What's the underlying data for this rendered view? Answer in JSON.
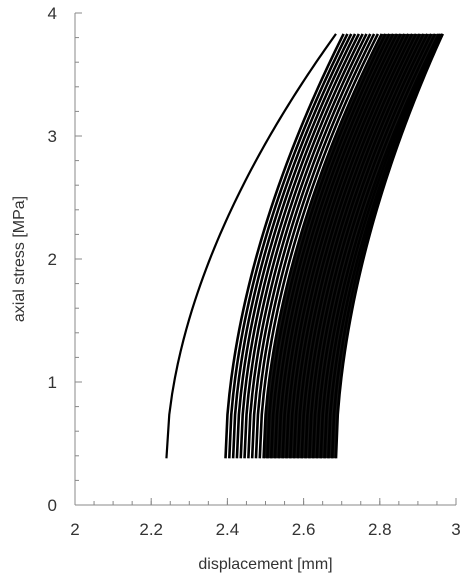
{
  "chart_data": {
    "type": "line",
    "title": "",
    "xlabel": "displacement [mm]",
    "ylabel": "axial stress [MPa]",
    "xlim": [
      2,
      3
    ],
    "ylim": [
      0,
      4
    ],
    "xticks": [
      2,
      2.2,
      2.4,
      2.6,
      2.8,
      3
    ],
    "xtick_labels": [
      "2",
      "2.2",
      "2.4",
      "2.6",
      "2.8",
      "3"
    ],
    "yticks": [
      0,
      1,
      2,
      3,
      4
    ],
    "ytick_labels": [
      "0",
      "1",
      "2",
      "3",
      "4"
    ],
    "x_minor_step": 0.05,
    "y_minor_step": 0.2,
    "grid": false,
    "legend": "none",
    "line_color": "#000000",
    "load_cycles": {
      "stress_min": 0.38,
      "stress_max": 3.83,
      "curve_shape_exponent": 1.8,
      "first_cycle": {
        "x_start": 2.24,
        "x_end": 2.685
      },
      "cycles": [
        {
          "x_start": 2.395,
          "x_end": 2.705
        },
        {
          "x_start": 2.405,
          "x_end": 2.715
        },
        {
          "x_start": 2.415,
          "x_end": 2.725
        },
        {
          "x_start": 2.425,
          "x_end": 2.735
        },
        {
          "x_start": 2.435,
          "x_end": 2.745
        },
        {
          "x_start": 2.445,
          "x_end": 2.755
        },
        {
          "x_start": 2.455,
          "x_end": 2.765
        },
        {
          "x_start": 2.465,
          "x_end": 2.775
        },
        {
          "x_start": 2.475,
          "x_end": 2.785
        },
        {
          "x_start": 2.485,
          "x_end": 2.795
        },
        {
          "x_start": 2.495,
          "x_end": 2.805
        },
        {
          "x_start": 2.505,
          "x_end": 2.815
        },
        {
          "x_start": 2.515,
          "x_end": 2.825
        },
        {
          "x_start": 2.525,
          "x_end": 2.835
        },
        {
          "x_start": 2.535,
          "x_end": 2.845
        },
        {
          "x_start": 2.545,
          "x_end": 2.855
        },
        {
          "x_start": 2.555,
          "x_end": 2.865
        },
        {
          "x_start": 2.565,
          "x_end": 2.875
        },
        {
          "x_start": 2.575,
          "x_end": 2.885
        },
        {
          "x_start": 2.585,
          "x_end": 2.895
        },
        {
          "x_start": 2.595,
          "x_end": 2.905
        },
        {
          "x_start": 2.605,
          "x_end": 2.915
        },
        {
          "x_start": 2.615,
          "x_end": 2.925
        },
        {
          "x_start": 2.625,
          "x_end": 2.935
        },
        {
          "x_start": 2.635,
          "x_end": 2.945
        },
        {
          "x_start": 2.645,
          "x_end": 2.955
        },
        {
          "x_start": 2.655,
          "x_end": 2.96
        },
        {
          "x_start": 2.665,
          "x_end": 2.965
        },
        {
          "x_start": 2.675,
          "x_end": 2.965
        },
        {
          "x_start": 2.685,
          "x_end": 2.965
        }
      ]
    }
  }
}
